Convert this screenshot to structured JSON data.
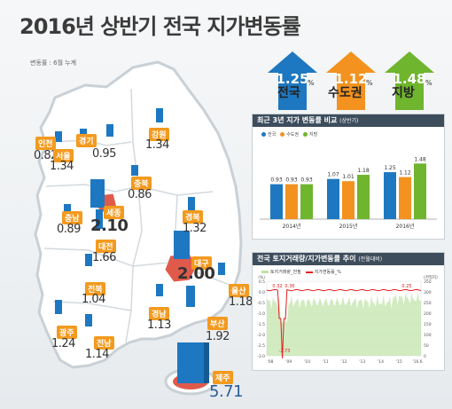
{
  "title": "2016년 상반기 전국 지가변동률",
  "unit_note": "변동률 : 6월 누계",
  "summary": [
    {
      "value": "1.25",
      "name": "전국",
      "color": "#1d78c1"
    },
    {
      "value": "1.12",
      "name": "수도권",
      "color": "#f3921f"
    },
    {
      "value": "1.48",
      "name": "지방",
      "color": "#6fb52e"
    }
  ],
  "percent_sign": "%",
  "regions": [
    {
      "name": "인천",
      "value": "0.82"
    },
    {
      "name": "경기",
      "value": "0.95"
    },
    {
      "name": "서울",
      "value": "1.34"
    },
    {
      "name": "강원",
      "value": "1.34"
    },
    {
      "name": "충북",
      "value": "0.86"
    },
    {
      "name": "충남",
      "value": "0.89"
    },
    {
      "name": "세종",
      "value": "2.10"
    },
    {
      "name": "대전",
      "value": "1.66"
    },
    {
      "name": "경북",
      "value": "1.32"
    },
    {
      "name": "대구",
      "value": "2.00"
    },
    {
      "name": "전북",
      "value": "1.04"
    },
    {
      "name": "울산",
      "value": "1.18"
    },
    {
      "name": "경남",
      "value": "1.13"
    },
    {
      "name": "부산",
      "value": "1.92"
    },
    {
      "name": "광주",
      "value": "1.24"
    },
    {
      "name": "전남",
      "value": "1.14"
    },
    {
      "name": "제주",
      "value": "5.71"
    }
  ],
  "chart_data": [
    {
      "type": "bar",
      "title": "최근 3년 지가 변동률 비교",
      "subtitle": "(상반기)",
      "categories": [
        "2014년",
        "2015년",
        "2016년"
      ],
      "series": [
        {
          "name": "전국",
          "values": [
            0.93,
            1.07,
            1.25
          ],
          "color": "#1d78c1"
        },
        {
          "name": "수도권",
          "values": [
            0.93,
            1.01,
            1.12
          ],
          "color": "#f3921f"
        },
        {
          "name": "지방",
          "values": [
            0.93,
            1.18,
            1.48
          ],
          "color": "#6fb52e"
        }
      ],
      "ylim": [
        0,
        1.7
      ]
    },
    {
      "type": "line",
      "title": "전국 토지거래량/지가변동률 추이",
      "subtitle": "(전월대비)",
      "series": [
        {
          "name": "토지거래량_천필",
          "color": "#bfe3a6"
        },
        {
          "name": "지가변동률_%",
          "color": "#e02020"
        }
      ],
      "x_ticks": [
        "'08",
        "'09",
        "'10",
        "'11",
        "'12",
        "'13",
        "'14",
        "'15",
        "'16.6"
      ],
      "annotations": [
        "0.32",
        "0.36",
        "-2.73",
        "0.25"
      ],
      "left_axis": [
        "0.5",
        "0.0",
        "-0.5",
        "-1.0",
        "-1.5",
        "-2.0",
        "-2.5",
        "-3.0"
      ],
      "left_unit": "(%)",
      "right_axis": [
        "350",
        "300",
        "250",
        "200",
        "150",
        "100",
        "50",
        "0"
      ],
      "right_unit": "(천필지)"
    }
  ]
}
